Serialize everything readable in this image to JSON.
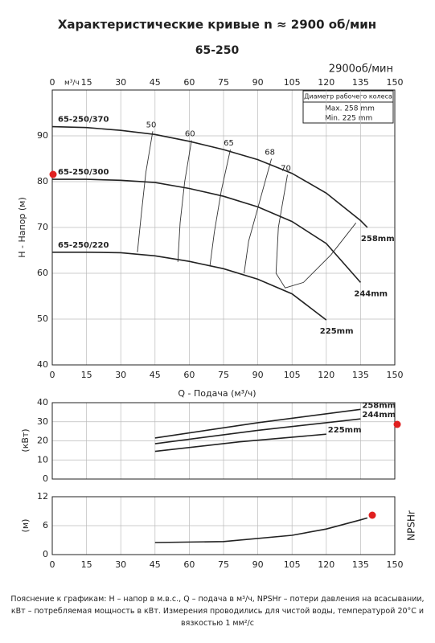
{
  "chart_data": [
    {
      "type": "line",
      "title": "Характеристические кривые n ≈ 2900 об/мин",
      "subtitle": "65-250",
      "speed_label": "2900об/мин",
      "x_unit": "м³/ч",
      "xlabel": "Q - Подача (м³/ч)",
      "ylabel": "H - Напор (м)",
      "xlim": [
        0,
        150
      ],
      "xticks": [
        0,
        15,
        30,
        45,
        60,
        75,
        90,
        105,
        120,
        135,
        150
      ],
      "ylim": [
        40,
        100
      ],
      "yticks": [
        40,
        50,
        60,
        70,
        80,
        90
      ],
      "grid": true,
      "legend": {
        "title": "Диаметр рабочего колеса",
        "rows": [
          "Max.  258 mm",
          "Min.  225 mm"
        ]
      },
      "series": [
        {
          "name": "65-250/370",
          "end_label": "258mm",
          "color": "#222",
          "x": [
            0,
            15,
            30,
            45,
            60,
            75,
            90,
            105,
            120,
            135,
            138
          ],
          "values": [
            92,
            91.8,
            91.2,
            90.3,
            88.8,
            87,
            84.8,
            81.8,
            77.5,
            71.5,
            70
          ]
        },
        {
          "name": "65-250/300",
          "end_label": "244mm",
          "color": "#222",
          "x": [
            0,
            15,
            30,
            45,
            60,
            75,
            90,
            105,
            120,
            135
          ],
          "values": [
            80.5,
            80.5,
            80.3,
            79.8,
            78.5,
            76.8,
            74.5,
            71.3,
            66.5,
            58
          ]
        },
        {
          "name": "65-250/220",
          "end_label": "225mm",
          "color": "#222",
          "x": [
            0,
            15,
            30,
            45,
            60,
            75,
            90,
            105,
            120
          ],
          "values": [
            64.6,
            64.6,
            64.5,
            63.8,
            62.6,
            61,
            58.7,
            55.5,
            49.8
          ]
        }
      ],
      "efficiency": [
        {
          "value": 50,
          "x": [
            44,
            41,
            39,
            37.3
          ],
          "values": [
            91,
            82,
            73,
            64.6
          ]
        },
        {
          "value": 60,
          "x": [
            61,
            58,
            56,
            55
          ],
          "values": [
            89,
            80,
            71,
            62.5
          ]
        },
        {
          "value": 65,
          "x": [
            78,
            74,
            71,
            69
          ],
          "values": [
            87,
            78,
            69,
            61.5
          ]
        },
        {
          "value": 68,
          "x": [
            96,
            91,
            86,
            84
          ],
          "values": [
            85,
            76,
            67,
            60
          ]
        },
        {
          "value": 70,
          "x": [
            103,
            99,
            98,
            102,
            110,
            122,
            133
          ],
          "values": [
            81.5,
            70,
            60,
            56.8,
            58,
            64,
            71
          ]
        }
      ]
    },
    {
      "type": "line",
      "ylabel": "(кВт)",
      "xlim": [
        0,
        150
      ],
      "xticks": [
        0,
        15,
        30,
        45,
        60,
        75,
        90,
        105,
        120,
        135,
        150
      ],
      "ylim": [
        0,
        40
      ],
      "yticks": [
        0,
        10,
        20,
        30,
        40
      ],
      "grid": true,
      "series": [
        {
          "end_label": "258mm",
          "color": "#222",
          "x": [
            45,
            90,
            135
          ],
          "values": [
            21.5,
            29.5,
            36.5
          ]
        },
        {
          "end_label": "244mm",
          "color": "#222",
          "x": [
            45,
            90,
            135
          ],
          "values": [
            18.5,
            25.5,
            31.5
          ]
        },
        {
          "end_label": "225mm",
          "color": "#222",
          "x": [
            45,
            82,
            120
          ],
          "values": [
            14.5,
            19.5,
            23.5
          ]
        }
      ]
    },
    {
      "type": "line",
      "ylabel": "(м)",
      "right_label": "NPSHr",
      "xlim": [
        0,
        150
      ],
      "xticks": [
        0,
        15,
        30,
        45,
        60,
        75,
        90,
        105,
        120,
        135,
        150
      ],
      "ylim": [
        0,
        12
      ],
      "yticks": [
        0,
        6,
        12
      ],
      "grid": true,
      "series": [
        {
          "color": "#222",
          "x": [
            45,
            75,
            105,
            120,
            135,
            138
          ],
          "values": [
            2.5,
            2.7,
            4,
            5.3,
            7.2,
            7.6
          ]
        }
      ]
    }
  ],
  "note": "Пояснение к графикам: H – напор в м.в.с., Q – подача в м³/ч, NPSHr – потери давления на всасывании, кВт – потребляемая мощность в кВт. Измерения проводились для чистой воды, температурой 20°С и вязкостью 1 мм²/с"
}
